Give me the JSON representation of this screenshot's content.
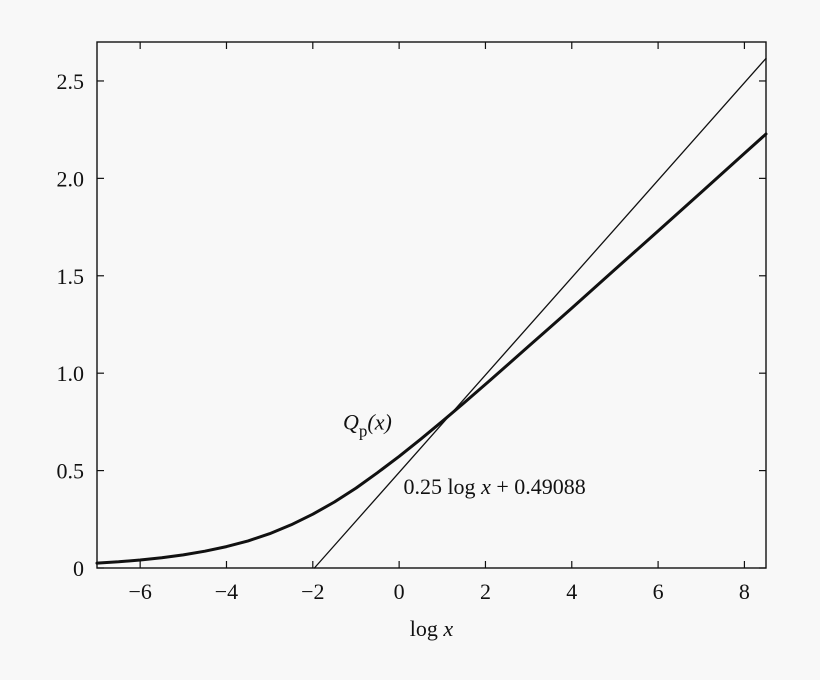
{
  "chart_data": {
    "type": "line",
    "xlabel": {
      "prefix": "log ",
      "variable": "x"
    },
    "ylabel": "",
    "xlim": [
      -7,
      8.5
    ],
    "ylim": [
      0,
      2.7
    ],
    "x_ticks": [
      -6,
      -4,
      -2,
      0,
      2,
      4,
      6,
      8
    ],
    "x_tick_labels": [
      "−6",
      "−4",
      "−2",
      "0",
      "2",
      "4",
      "6",
      "8"
    ],
    "y_ticks": [
      0,
      0.5,
      1.0,
      1.5,
      2.0,
      2.5
    ],
    "y_tick_labels": [
      "0",
      "0.5",
      "1.0",
      "1.5",
      "2.0",
      "2.5"
    ],
    "grid": false,
    "series": [
      {
        "name": "Q_p(x)",
        "style": "thick",
        "x": [
          -7,
          -6.5,
          -6,
          -5.5,
          -5,
          -4.5,
          -4,
          -3.5,
          -3,
          -2.5,
          -2,
          -1.5,
          -1,
          -0.5,
          0,
          0.5,
          1,
          1.5,
          2,
          2.5,
          3,
          3.5,
          4,
          5,
          6,
          7,
          8,
          8.5
        ],
        "y": [
          0.025,
          0.032,
          0.041,
          0.053,
          0.067,
          0.086,
          0.11,
          0.139,
          0.176,
          0.222,
          0.276,
          0.339,
          0.41,
          0.489,
          0.573,
          0.661,
          0.753,
          0.847,
          0.943,
          1.04,
          1.138,
          1.236,
          1.334,
          1.532,
          1.73,
          1.929,
          2.128,
          2.228
        ]
      },
      {
        "name": "0.25 log x + 0.49088",
        "style": "thin",
        "x": [
          -1.9635,
          8.5
        ],
        "y": [
          0.0,
          2.6159
        ]
      }
    ],
    "annotations": {
      "curve_label": {
        "main": "Q",
        "sub": "p",
        "arg": "(x)",
        "at": [
          -1.3,
          0.71
        ]
      },
      "line_label": {
        "parts": [
          "0.25 log ",
          "x",
          " + 0.49088"
        ],
        "at": [
          0.1,
          0.38
        ]
      }
    }
  }
}
